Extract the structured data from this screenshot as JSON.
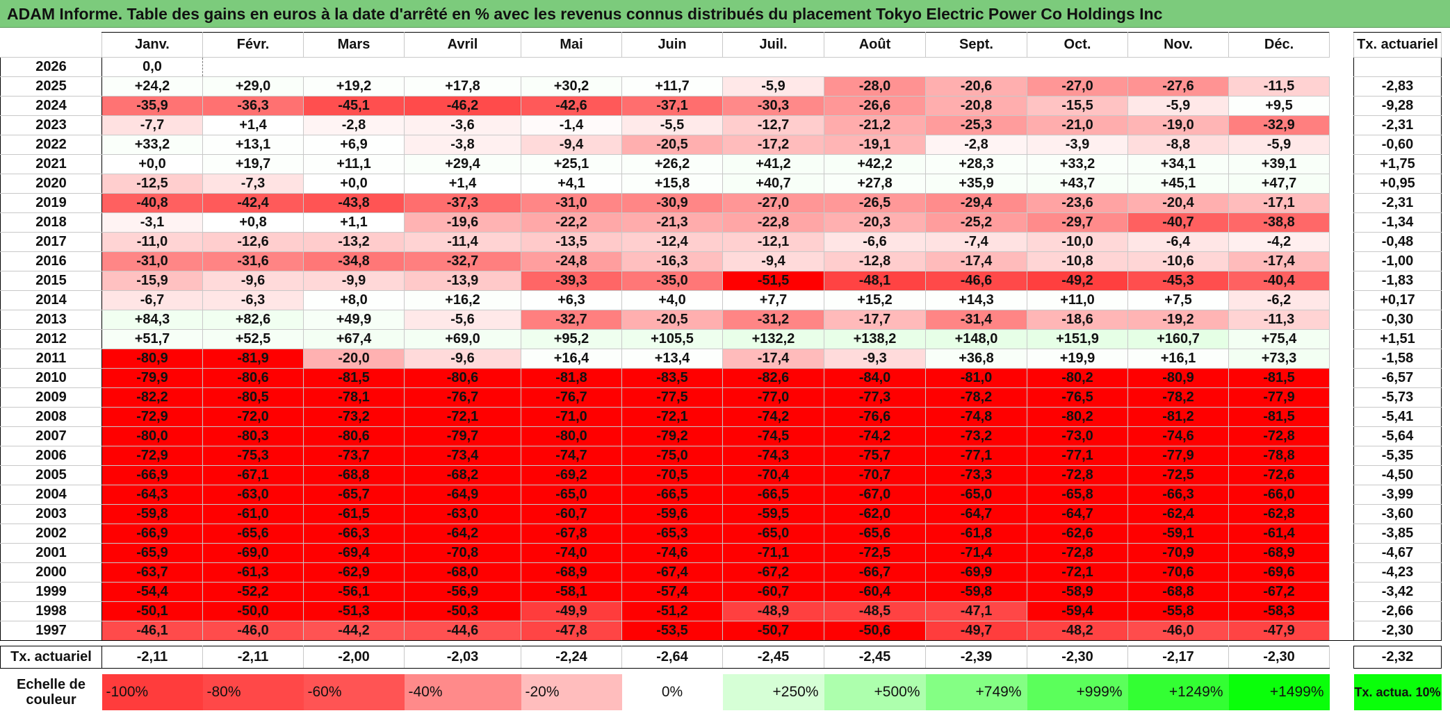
{
  "title": "ADAM Informe. Table des gains en euros à la date d'arrêté en % avec les revenus connus distribués du placement Tokyo Electric Power Co Holdings Inc",
  "months": [
    "Janv.",
    "Févr.",
    "Mars",
    "Avril",
    "Mai",
    "Juin",
    "Juil.",
    "Août",
    "Sept.",
    "Oct.",
    "Nov.",
    "Déc."
  ],
  "actuarial_header": "Tx. actuariel",
  "rows": [
    {
      "year": "2026",
      "values": [
        "0,0",
        "",
        "",
        "",
        "",
        "",
        "",
        "",
        "",
        "",
        "",
        ""
      ],
      "actuarial": ""
    },
    {
      "year": "2025",
      "values": [
        "+24,2",
        "+29,0",
        "+19,2",
        "+17,8",
        "+30,2",
        "+11,7",
        "-5,9",
        "-28,0",
        "-20,6",
        "-27,0",
        "-27,6",
        "-11,5"
      ],
      "actuarial": "-2,83"
    },
    {
      "year": "2024",
      "values": [
        "-35,9",
        "-36,3",
        "-45,1",
        "-46,2",
        "-42,6",
        "-37,1",
        "-30,3",
        "-26,6",
        "-20,8",
        "-15,5",
        "-5,9",
        "+9,5"
      ],
      "actuarial": "-9,28"
    },
    {
      "year": "2023",
      "values": [
        "-7,7",
        "+1,4",
        "-2,8",
        "-3,6",
        "-1,4",
        "-5,5",
        "-12,7",
        "-21,2",
        "-25,3",
        "-21,0",
        "-19,0",
        "-32,9"
      ],
      "actuarial": "-2,31"
    },
    {
      "year": "2022",
      "values": [
        "+33,2",
        "+13,1",
        "+6,9",
        "-3,8",
        "-9,4",
        "-20,5",
        "-17,2",
        "-19,1",
        "-2,8",
        "-3,9",
        "-8,8",
        "-5,9"
      ],
      "actuarial": "-0,60"
    },
    {
      "year": "2021",
      "values": [
        "+0,0",
        "+19,7",
        "+11,1",
        "+29,4",
        "+25,1",
        "+26,2",
        "+41,2",
        "+42,2",
        "+28,3",
        "+33,2",
        "+34,1",
        "+39,1"
      ],
      "actuarial": "+1,75"
    },
    {
      "year": "2020",
      "values": [
        "-12,5",
        "-7,3",
        "+0,0",
        "+1,4",
        "+4,1",
        "+15,8",
        "+40,7",
        "+27,8",
        "+35,9",
        "+43,7",
        "+45,1",
        "+47,7"
      ],
      "actuarial": "+0,95"
    },
    {
      "year": "2019",
      "values": [
        "-40,8",
        "-42,4",
        "-43,8",
        "-37,3",
        "-31,0",
        "-30,9",
        "-27,0",
        "-26,5",
        "-29,4",
        "-23,6",
        "-20,4",
        "-17,1"
      ],
      "actuarial": "-2,31"
    },
    {
      "year": "2018",
      "values": [
        "-3,1",
        "+0,8",
        "+1,1",
        "-19,6",
        "-22,2",
        "-21,3",
        "-22,8",
        "-20,3",
        "-25,2",
        "-29,7",
        "-40,7",
        "-38,8"
      ],
      "actuarial": "-1,34"
    },
    {
      "year": "2017",
      "values": [
        "-11,0",
        "-12,6",
        "-13,2",
        "-11,4",
        "-13,5",
        "-12,4",
        "-12,1",
        "-6,6",
        "-7,4",
        "-10,0",
        "-6,4",
        "-4,2"
      ],
      "actuarial": "-0,48"
    },
    {
      "year": "2016",
      "values": [
        "-31,0",
        "-31,6",
        "-34,8",
        "-32,7",
        "-24,8",
        "-16,3",
        "-9,4",
        "-12,8",
        "-17,4",
        "-10,8",
        "-10,6",
        "-17,4"
      ],
      "actuarial": "-1,00"
    },
    {
      "year": "2015",
      "values": [
        "-15,9",
        "-9,6",
        "-9,9",
        "-13,9",
        "-39,3",
        "-35,0",
        "-51,5",
        "-48,1",
        "-46,6",
        "-49,2",
        "-45,3",
        "-40,4"
      ],
      "actuarial": "-1,83"
    },
    {
      "year": "2014",
      "values": [
        "-6,7",
        "-6,3",
        "+8,0",
        "+16,2",
        "+6,3",
        "+4,0",
        "+7,7",
        "+15,2",
        "+14,3",
        "+11,0",
        "+7,5",
        "-6,2"
      ],
      "actuarial": "+0,17"
    },
    {
      "year": "2013",
      "values": [
        "+84,3",
        "+82,6",
        "+49,9",
        "-5,6",
        "-32,7",
        "-20,5",
        "-31,2",
        "-17,7",
        "-31,4",
        "-18,6",
        "-19,2",
        "-11,3"
      ],
      "actuarial": "-0,30"
    },
    {
      "year": "2012",
      "values": [
        "+51,7",
        "+52,5",
        "+67,4",
        "+69,0",
        "+95,2",
        "+105,5",
        "+132,2",
        "+138,2",
        "+148,0",
        "+151,9",
        "+160,7",
        "+75,4"
      ],
      "actuarial": "+1,51"
    },
    {
      "year": "2011",
      "values": [
        "-80,9",
        "-81,9",
        "-20,0",
        "-9,6",
        "+16,4",
        "+13,4",
        "-17,4",
        "-9,3",
        "+36,8",
        "+19,9",
        "+16,1",
        "+73,3"
      ],
      "actuarial": "-1,58"
    },
    {
      "year": "2010",
      "values": [
        "-79,9",
        "-80,6",
        "-81,5",
        "-80,6",
        "-81,8",
        "-83,5",
        "-82,6",
        "-84,0",
        "-81,0",
        "-80,2",
        "-80,9",
        "-81,5"
      ],
      "actuarial": "-6,57"
    },
    {
      "year": "2009",
      "values": [
        "-82,2",
        "-80,5",
        "-78,1",
        "-76,7",
        "-76,7",
        "-77,5",
        "-77,0",
        "-77,3",
        "-78,2",
        "-76,5",
        "-78,2",
        "-77,9"
      ],
      "actuarial": "-5,73"
    },
    {
      "year": "2008",
      "values": [
        "-72,9",
        "-72,0",
        "-73,2",
        "-72,1",
        "-71,0",
        "-72,1",
        "-74,2",
        "-76,6",
        "-74,8",
        "-80,2",
        "-81,2",
        "-81,5"
      ],
      "actuarial": "-5,41"
    },
    {
      "year": "2007",
      "values": [
        "-80,0",
        "-80,3",
        "-80,6",
        "-79,7",
        "-80,0",
        "-79,2",
        "-74,5",
        "-74,2",
        "-73,2",
        "-73,0",
        "-74,6",
        "-72,8"
      ],
      "actuarial": "-5,64"
    },
    {
      "year": "2006",
      "values": [
        "-72,9",
        "-75,3",
        "-73,7",
        "-73,4",
        "-74,7",
        "-75,0",
        "-74,3",
        "-75,7",
        "-77,1",
        "-77,1",
        "-77,9",
        "-78,8"
      ],
      "actuarial": "-5,35"
    },
    {
      "year": "2005",
      "values": [
        "-66,9",
        "-67,1",
        "-68,8",
        "-68,2",
        "-69,2",
        "-70,5",
        "-70,4",
        "-70,7",
        "-73,3",
        "-72,8",
        "-72,5",
        "-72,6"
      ],
      "actuarial": "-4,50"
    },
    {
      "year": "2004",
      "values": [
        "-64,3",
        "-63,0",
        "-65,7",
        "-64,9",
        "-65,0",
        "-66,5",
        "-66,5",
        "-67,0",
        "-65,0",
        "-65,8",
        "-66,3",
        "-66,0"
      ],
      "actuarial": "-3,99"
    },
    {
      "year": "2003",
      "values": [
        "-59,8",
        "-61,0",
        "-61,5",
        "-63,0",
        "-60,7",
        "-59,6",
        "-59,5",
        "-62,0",
        "-64,7",
        "-64,7",
        "-62,4",
        "-62,8"
      ],
      "actuarial": "-3,60"
    },
    {
      "year": "2002",
      "values": [
        "-66,9",
        "-65,6",
        "-66,3",
        "-64,2",
        "-67,8",
        "-65,3",
        "-65,0",
        "-65,6",
        "-61,8",
        "-62,6",
        "-59,1",
        "-61,4"
      ],
      "actuarial": "-3,85"
    },
    {
      "year": "2001",
      "values": [
        "-65,9",
        "-69,0",
        "-69,4",
        "-70,8",
        "-74,0",
        "-74,6",
        "-71,1",
        "-72,5",
        "-71,4",
        "-72,8",
        "-70,9",
        "-68,9"
      ],
      "actuarial": "-4,67"
    },
    {
      "year": "2000",
      "values": [
        "-63,7",
        "-61,3",
        "-62,9",
        "-68,0",
        "-68,9",
        "-67,4",
        "-67,2",
        "-66,7",
        "-69,9",
        "-72,1",
        "-70,6",
        "-69,6"
      ],
      "actuarial": "-4,23"
    },
    {
      "year": "1999",
      "values": [
        "-54,4",
        "-52,2",
        "-56,1",
        "-56,9",
        "-58,1",
        "-57,4",
        "-60,7",
        "-60,4",
        "-59,8",
        "-58,9",
        "-68,8",
        "-67,2"
      ],
      "actuarial": "-3,42"
    },
    {
      "year": "1998",
      "values": [
        "-50,1",
        "-50,0",
        "-51,3",
        "-50,3",
        "-49,9",
        "-51,2",
        "-48,9",
        "-48,5",
        "-47,1",
        "-59,4",
        "-55,8",
        "-58,3"
      ],
      "actuarial": "-2,66"
    },
    {
      "year": "1997",
      "values": [
        "-46,1",
        "-46,0",
        "-44,2",
        "-44,6",
        "-47,8",
        "-53,5",
        "-50,7",
        "-50,6",
        "-49,7",
        "-48,2",
        "-46,0",
        "-47,9"
      ],
      "actuarial": "-2,30"
    }
  ],
  "totals": {
    "label": "Tx. actuariel",
    "values": [
      "-2,11",
      "-2,11",
      "-2,00",
      "-2,03",
      "-2,24",
      "-2,64",
      "-2,45",
      "-2,45",
      "-2,39",
      "-2,30",
      "-2,17",
      "-2,30"
    ],
    "overall": "-2,32"
  },
  "scale": {
    "label": "Echelle de couleur",
    "items": [
      "-100%",
      "-80%",
      "-60%",
      "-40%",
      "-20%",
      "0%",
      "+250%",
      "+500%",
      "+749%",
      "+999%",
      "+1249%",
      "+1499%"
    ],
    "colors": [
      "#ff3c3c",
      "#ff4848",
      "#ff5454",
      "#ff8a8a",
      "#ffbdbd",
      "#ffffff",
      "#d6ffd6",
      "#adffad",
      "#84ff84",
      "#5bff5b",
      "#33ff33",
      "#0aff0a"
    ],
    "tx_label": "Tx. actua. 10%",
    "tx_color": "#0aff0a"
  }
}
